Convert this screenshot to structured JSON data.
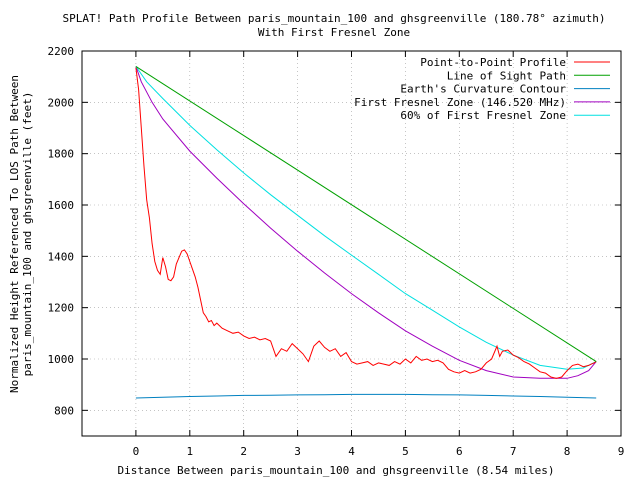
{
  "chart_data": {
    "type": "line",
    "title_line1": "SPLAT! Path Profile Between paris_mountain_100 and ghsgreenville (180.78° azimuth)",
    "title_line2": "With First Fresnel Zone",
    "xlabel": "Distance Between paris_mountain_100 and ghsgreenville (8.54 miles)",
    "ylabel_line1": "Normalized Height Referenced To LOS Path Between",
    "ylabel_line2": "paris_mountain_100 and ghsgreenville (feet)",
    "xlim": [
      -1,
      9
    ],
    "ylim": [
      700,
      2200
    ],
    "x_ticks": [
      0,
      1,
      2,
      3,
      4,
      5,
      6,
      7,
      8,
      9
    ],
    "y_ticks": [
      800,
      1000,
      1200,
      1400,
      1600,
      1800,
      2000,
      2200
    ],
    "legend_position": "top-right",
    "series": [
      {
        "name": "Point-to-Point Profile",
        "color": "#ff0000",
        "points": [
          [
            0,
            2135
          ],
          [
            0.05,
            2050
          ],
          [
            0.1,
            1900
          ],
          [
            0.15,
            1750
          ],
          [
            0.2,
            1620
          ],
          [
            0.25,
            1550
          ],
          [
            0.3,
            1450
          ],
          [
            0.35,
            1380
          ],
          [
            0.4,
            1345
          ],
          [
            0.45,
            1330
          ],
          [
            0.5,
            1395
          ],
          [
            0.55,
            1360
          ],
          [
            0.6,
            1310
          ],
          [
            0.65,
            1305
          ],
          [
            0.7,
            1320
          ],
          [
            0.75,
            1370
          ],
          [
            0.8,
            1395
          ],
          [
            0.85,
            1420
          ],
          [
            0.9,
            1425
          ],
          [
            0.95,
            1410
          ],
          [
            1.0,
            1380
          ],
          [
            1.05,
            1350
          ],
          [
            1.1,
            1320
          ],
          [
            1.15,
            1280
          ],
          [
            1.2,
            1230
          ],
          [
            1.25,
            1180
          ],
          [
            1.3,
            1165
          ],
          [
            1.35,
            1145
          ],
          [
            1.4,
            1150
          ],
          [
            1.45,
            1130
          ],
          [
            1.5,
            1140
          ],
          [
            1.6,
            1120
          ],
          [
            1.7,
            1110
          ],
          [
            1.8,
            1100
          ],
          [
            1.9,
            1105
          ],
          [
            2.0,
            1090
          ],
          [
            2.1,
            1080
          ],
          [
            2.2,
            1085
          ],
          [
            2.3,
            1075
          ],
          [
            2.4,
            1080
          ],
          [
            2.5,
            1070
          ],
          [
            2.6,
            1010
          ],
          [
            2.7,
            1040
          ],
          [
            2.8,
            1030
          ],
          [
            2.9,
            1060
          ],
          [
            3.0,
            1040
          ],
          [
            3.1,
            1020
          ],
          [
            3.2,
            990
          ],
          [
            3.3,
            1050
          ],
          [
            3.4,
            1070
          ],
          [
            3.5,
            1045
          ],
          [
            3.6,
            1030
          ],
          [
            3.7,
            1040
          ],
          [
            3.8,
            1010
          ],
          [
            3.9,
            1025
          ],
          [
            4.0,
            990
          ],
          [
            4.1,
            980
          ],
          [
            4.2,
            985
          ],
          [
            4.3,
            990
          ],
          [
            4.4,
            975
          ],
          [
            4.5,
            985
          ],
          [
            4.6,
            980
          ],
          [
            4.7,
            975
          ],
          [
            4.8,
            990
          ],
          [
            4.9,
            980
          ],
          [
            5.0,
            1000
          ],
          [
            5.1,
            985
          ],
          [
            5.2,
            1010
          ],
          [
            5.3,
            995
          ],
          [
            5.4,
            1000
          ],
          [
            5.5,
            990
          ],
          [
            5.6,
            995
          ],
          [
            5.7,
            985
          ],
          [
            5.8,
            960
          ],
          [
            5.9,
            950
          ],
          [
            6.0,
            945
          ],
          [
            6.1,
            955
          ],
          [
            6.2,
            945
          ],
          [
            6.3,
            950
          ],
          [
            6.4,
            960
          ],
          [
            6.5,
            985
          ],
          [
            6.6,
            1000
          ],
          [
            6.7,
            1050
          ],
          [
            6.75,
            1010
          ],
          [
            6.8,
            1030
          ],
          [
            6.9,
            1035
          ],
          [
            7.0,
            1015
          ],
          [
            7.1,
            1005
          ],
          [
            7.2,
            990
          ],
          [
            7.3,
            980
          ],
          [
            7.4,
            965
          ],
          [
            7.5,
            950
          ],
          [
            7.6,
            945
          ],
          [
            7.7,
            930
          ],
          [
            7.8,
            925
          ],
          [
            7.9,
            930
          ],
          [
            8.0,
            955
          ],
          [
            8.1,
            975
          ],
          [
            8.2,
            980
          ],
          [
            8.3,
            970
          ],
          [
            8.4,
            975
          ],
          [
            8.45,
            980
          ],
          [
            8.5,
            985
          ],
          [
            8.54,
            990
          ]
        ]
      },
      {
        "name": "Line of Sight Path",
        "color": "#00a000",
        "points": [
          [
            0,
            2140
          ],
          [
            8.54,
            990
          ]
        ]
      },
      {
        "name": "Earth's Curvature Contour",
        "color": "#0080c0",
        "points": [
          [
            0,
            848
          ],
          [
            0.5,
            851
          ],
          [
            1,
            854
          ],
          [
            1.5,
            856
          ],
          [
            2,
            858
          ],
          [
            2.5,
            859
          ],
          [
            3,
            860
          ],
          [
            3.5,
            861
          ],
          [
            4,
            862
          ],
          [
            4.5,
            862
          ],
          [
            5,
            862
          ],
          [
            5.5,
            861
          ],
          [
            6,
            860
          ],
          [
            6.5,
            858
          ],
          [
            7,
            856
          ],
          [
            7.5,
            854
          ],
          [
            8,
            851
          ],
          [
            8.54,
            848
          ]
        ]
      },
      {
        "name": "First Fresnel Zone (146.520 MHz)",
        "color": "#a000c0",
        "points": [
          [
            0,
            2140
          ],
          [
            0.1,
            2080
          ],
          [
            0.3,
            2000
          ],
          [
            0.5,
            1935
          ],
          [
            1,
            1810
          ],
          [
            1.5,
            1705
          ],
          [
            2,
            1605
          ],
          [
            2.5,
            1510
          ],
          [
            3,
            1420
          ],
          [
            3.5,
            1335
          ],
          [
            4,
            1255
          ],
          [
            4.5,
            1180
          ],
          [
            5,
            1110
          ],
          [
            5.5,
            1050
          ],
          [
            6,
            995
          ],
          [
            6.5,
            955
          ],
          [
            7,
            930
          ],
          [
            7.5,
            925
          ],
          [
            8,
            925
          ],
          [
            8.2,
            935
          ],
          [
            8.4,
            955
          ],
          [
            8.54,
            990
          ]
        ]
      },
      {
        "name": "60% of First Fresnel Zone",
        "color": "#00e0e0",
        "points": [
          [
            0,
            2140
          ],
          [
            0.2,
            2080
          ],
          [
            0.5,
            2015
          ],
          [
            1,
            1910
          ],
          [
            1.5,
            1815
          ],
          [
            2,
            1725
          ],
          [
            2.5,
            1640
          ],
          [
            3,
            1560
          ],
          [
            3.5,
            1480
          ],
          [
            4,
            1405
          ],
          [
            4.5,
            1330
          ],
          [
            5,
            1255
          ],
          [
            5.5,
            1190
          ],
          [
            6,
            1125
          ],
          [
            6.5,
            1065
          ],
          [
            7,
            1015
          ],
          [
            7.5,
            975
          ],
          [
            8,
            960
          ],
          [
            8.3,
            965
          ],
          [
            8.54,
            990
          ]
        ]
      }
    ]
  }
}
